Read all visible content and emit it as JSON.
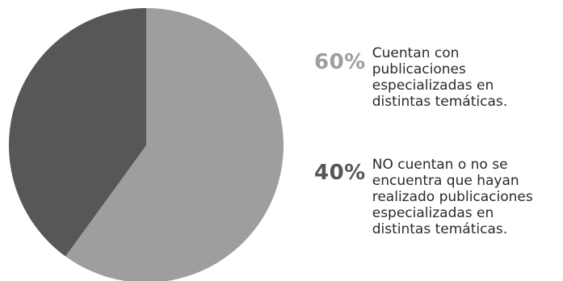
{
  "chart_data": {
    "type": "pie",
    "title": "",
    "slices": [
      {
        "label": "Cuentan con\npublicaciones\nespecializadas en\ndistintas temáticas.",
        "value": 60,
        "display": "60%",
        "color": "#9e9e9e",
        "label_color": "#9e9e9e"
      },
      {
        "label": "NO cuentan o no se\nencuentra que hayan\nrealizado publicaciones\nespecializadas en\ndistintas temáticas.",
        "value": 40,
        "display": "40%",
        "color": "#575757",
        "label_color": "#575757"
      }
    ],
    "legend_position": "right"
  }
}
